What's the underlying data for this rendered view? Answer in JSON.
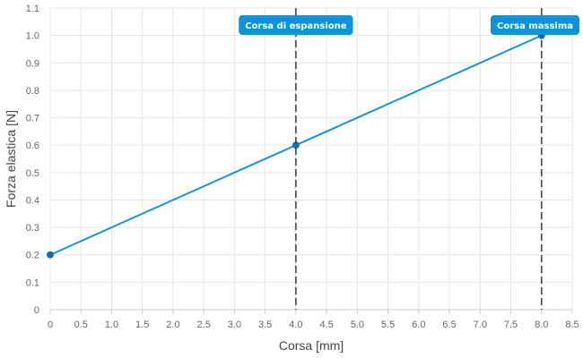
{
  "chart_data": {
    "type": "line",
    "xlabel": "Corsa [mm]",
    "ylabel": "Forza elastica [N]",
    "xlim": [
      0,
      8.5
    ],
    "ylim": [
      0,
      1.1
    ],
    "x_ticks": [
      "0",
      "0.5",
      "1.0",
      "1.5",
      "2.0",
      "2.5",
      "3.0",
      "3.5",
      "4.0",
      "4.5",
      "5.0",
      "5.5",
      "6.0",
      "6.5",
      "7.0",
      "7.5",
      "8.0",
      "8.5"
    ],
    "y_ticks": [
      "0",
      "0.1",
      "0.2",
      "0.3",
      "0.4",
      "0.5",
      "0.6",
      "0.7",
      "0.8",
      "0.9",
      "1.0",
      "1.1"
    ],
    "grid": true,
    "legend": "none",
    "series": [
      {
        "color": "#1b92d2",
        "points": [
          {
            "x": 0,
            "y": 0.2
          },
          {
            "x": 4.0,
            "y": 0.6
          },
          {
            "x": 8.0,
            "y": 1.0
          }
        ]
      }
    ],
    "annotations": [
      {
        "x": 4.0,
        "label": "Corsa di espansione",
        "color": "#0b95d9"
      },
      {
        "x": 8.0,
        "label": "Corsa massima",
        "color": "#0b95d9"
      }
    ]
  }
}
